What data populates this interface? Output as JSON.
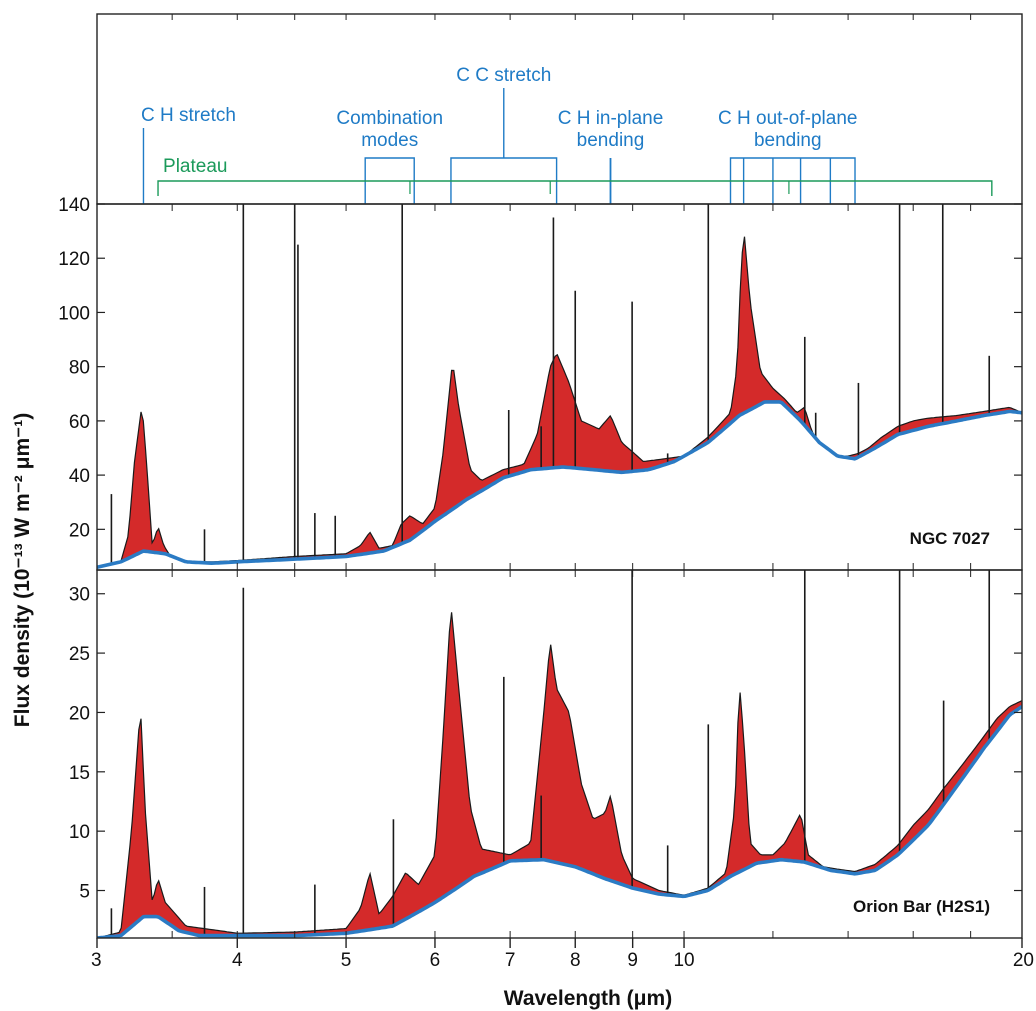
{
  "chart_data": {
    "type": "line",
    "xlabel": "Wavelength (μm)",
    "ylabel": "Flux density (10⁻¹³ W m⁻² μm⁻¹)",
    "x_scale": "log",
    "xlim": [
      3,
      20
    ],
    "x_ticks": [
      3,
      4,
      5,
      6,
      7,
      8,
      9,
      10,
      20
    ],
    "colors": {
      "spectrum": "#1a1a1a",
      "feature_fill": "#d42a2a",
      "continuum": "#2b7bc4",
      "band": "#1f7bc6",
      "plateau": "#1b9a5a"
    },
    "band_annotations": [
      {
        "label": "C H stretch",
        "lines": [
          "C H stretch"
        ],
        "positions": [
          3.3
        ]
      },
      {
        "label": "Combination modes",
        "lines": [
          "Combination",
          "modes"
        ],
        "range": [
          5.2,
          5.75
        ]
      },
      {
        "label": "C C stretch",
        "lines": [
          "C C stretch"
        ],
        "range": [
          6.2,
          7.7
        ]
      },
      {
        "label": "C H in-plane bending",
        "lines": [
          "C H in-plane",
          "bending"
        ],
        "positions": [
          8.6
        ]
      },
      {
        "label": "C H out-of-plane bending",
        "lines": [
          "C H out-of-plane",
          "bending"
        ],
        "range": [
          11.0,
          14.2
        ],
        "positions": [
          11.3,
          12.0,
          12.7,
          13.5
        ]
      }
    ],
    "plateau": {
      "label": "Plateau",
      "range": [
        3.4,
        18.8
      ],
      "ticks": [
        5.7,
        7.6,
        12.4
      ]
    },
    "panels": [
      {
        "label": "NGC 7027",
        "ylim": [
          5,
          140
        ],
        "y_ticks": [
          20,
          40,
          60,
          80,
          100,
          120,
          140
        ],
        "continuum": [
          [
            3.0,
            6
          ],
          [
            3.15,
            8
          ],
          [
            3.3,
            12
          ],
          [
            3.45,
            11
          ],
          [
            3.6,
            8
          ],
          [
            3.8,
            7.5
          ],
          [
            4.0,
            8
          ],
          [
            4.5,
            9
          ],
          [
            5.0,
            10
          ],
          [
            5.4,
            12
          ],
          [
            5.7,
            16
          ],
          [
            6.0,
            23
          ],
          [
            6.4,
            31
          ],
          [
            6.9,
            39
          ],
          [
            7.3,
            42
          ],
          [
            7.8,
            43
          ],
          [
            8.3,
            42
          ],
          [
            8.8,
            41
          ],
          [
            9.3,
            42
          ],
          [
            9.8,
            45
          ],
          [
            10.5,
            52
          ],
          [
            11.2,
            62
          ],
          [
            11.8,
            67
          ],
          [
            12.2,
            67
          ],
          [
            12.7,
            60
          ],
          [
            13.2,
            52
          ],
          [
            13.7,
            47
          ],
          [
            14.2,
            46
          ],
          [
            14.8,
            50
          ],
          [
            15.5,
            55
          ],
          [
            16.5,
            58
          ],
          [
            17.5,
            60
          ],
          [
            18.5,
            62
          ],
          [
            19.5,
            63.5
          ],
          [
            20.0,
            63
          ]
        ],
        "spectrum": [
          [
            3.0,
            6
          ],
          [
            3.15,
            8
          ],
          [
            3.2,
            18
          ],
          [
            3.24,
            45
          ],
          [
            3.29,
            66
          ],
          [
            3.32,
            45
          ],
          [
            3.36,
            14
          ],
          [
            3.4,
            21
          ],
          [
            3.44,
            14
          ],
          [
            3.5,
            9
          ],
          [
            3.6,
            8
          ],
          [
            3.8,
            8
          ],
          [
            4.0,
            8.5
          ],
          [
            4.5,
            10
          ],
          [
            5.0,
            11
          ],
          [
            5.15,
            14
          ],
          [
            5.25,
            19
          ],
          [
            5.35,
            13
          ],
          [
            5.5,
            14
          ],
          [
            5.6,
            22
          ],
          [
            5.7,
            25
          ],
          [
            5.85,
            22
          ],
          [
            6.0,
            28
          ],
          [
            6.1,
            48
          ],
          [
            6.22,
            82
          ],
          [
            6.3,
            65
          ],
          [
            6.45,
            42
          ],
          [
            6.6,
            38
          ],
          [
            6.9,
            42
          ],
          [
            7.2,
            44
          ],
          [
            7.4,
            55
          ],
          [
            7.6,
            80
          ],
          [
            7.7,
            85
          ],
          [
            7.9,
            74
          ],
          [
            8.1,
            60
          ],
          [
            8.4,
            57
          ],
          [
            8.6,
            62
          ],
          [
            8.8,
            52
          ],
          [
            9.2,
            45
          ],
          [
            9.6,
            46
          ],
          [
            10.0,
            47
          ],
          [
            10.5,
            54
          ],
          [
            11.0,
            63
          ],
          [
            11.15,
            80
          ],
          [
            11.25,
            120
          ],
          [
            11.32,
            128
          ],
          [
            11.45,
            104
          ],
          [
            11.7,
            78
          ],
          [
            12.0,
            72
          ],
          [
            12.3,
            68
          ],
          [
            12.6,
            63
          ],
          [
            12.8,
            65
          ],
          [
            13.0,
            56
          ],
          [
            13.3,
            50
          ],
          [
            13.6,
            47
          ],
          [
            14.0,
            47
          ],
          [
            14.3,
            48
          ],
          [
            14.6,
            50
          ],
          [
            15.0,
            54
          ],
          [
            15.5,
            58
          ],
          [
            16.0,
            60
          ],
          [
            16.5,
            61
          ],
          [
            17.5,
            62
          ],
          [
            18.5,
            63.5
          ],
          [
            19.5,
            65
          ],
          [
            20.0,
            63
          ]
        ],
        "emission_lines": [
          [
            3.09,
            33
          ],
          [
            3.74,
            20
          ],
          [
            4.05,
            140
          ],
          [
            4.5,
            140
          ],
          [
            4.53,
            125
          ],
          [
            4.69,
            26
          ],
          [
            4.89,
            25
          ],
          [
            5.61,
            140
          ],
          [
            6.98,
            64
          ],
          [
            7.46,
            58
          ],
          [
            7.65,
            135
          ],
          [
            8.0,
            108
          ],
          [
            8.99,
            104
          ],
          [
            9.67,
            48
          ],
          [
            10.51,
            140
          ],
          [
            12.37,
            65
          ],
          [
            12.81,
            91
          ],
          [
            13.1,
            63
          ],
          [
            14.3,
            74
          ],
          [
            15.56,
            140
          ],
          [
            17.0,
            140
          ],
          [
            18.7,
            84
          ]
        ]
      },
      {
        "label": "Orion Bar (H2S1)",
        "ylim": [
          1,
          32
        ],
        "y_ticks": [
          5,
          10,
          15,
          20,
          25,
          30
        ],
        "continuum": [
          [
            3.0,
            1
          ],
          [
            3.15,
            1.2
          ],
          [
            3.3,
            2.8
          ],
          [
            3.4,
            2.8
          ],
          [
            3.55,
            1.6
          ],
          [
            3.7,
            1.2
          ],
          [
            4.0,
            1.2
          ],
          [
            4.5,
            1.2
          ],
          [
            5.0,
            1.4
          ],
          [
            5.5,
            2.0
          ],
          [
            6.0,
            4.0
          ],
          [
            6.5,
            6.2
          ],
          [
            7.0,
            7.5
          ],
          [
            7.5,
            7.6
          ],
          [
            8.0,
            7.0
          ],
          [
            8.5,
            6.0
          ],
          [
            9.0,
            5.2
          ],
          [
            9.5,
            4.7
          ],
          [
            10.0,
            4.5
          ],
          [
            10.5,
            5.0
          ],
          [
            11.0,
            6.2
          ],
          [
            11.6,
            7.3
          ],
          [
            12.2,
            7.6
          ],
          [
            12.8,
            7.4
          ],
          [
            13.5,
            6.7
          ],
          [
            14.2,
            6.4
          ],
          [
            14.8,
            6.7
          ],
          [
            15.5,
            8.0
          ],
          [
            16.5,
            10.5
          ],
          [
            17.5,
            13.8
          ],
          [
            18.5,
            17.0
          ],
          [
            19.5,
            19.8
          ],
          [
            20.0,
            20.5
          ]
        ],
        "spectrum": [
          [
            3.0,
            1
          ],
          [
            3.15,
            1.5
          ],
          [
            3.22,
            10
          ],
          [
            3.28,
            20.5
          ],
          [
            3.31,
            12
          ],
          [
            3.36,
            4
          ],
          [
            3.4,
            6
          ],
          [
            3.45,
            4
          ],
          [
            3.6,
            2
          ],
          [
            4.0,
            1.4
          ],
          [
            4.5,
            1.5
          ],
          [
            5.0,
            1.8
          ],
          [
            5.15,
            3.5
          ],
          [
            5.25,
            6.5
          ],
          [
            5.35,
            3.0
          ],
          [
            5.5,
            4.5
          ],
          [
            5.65,
            6.5
          ],
          [
            5.8,
            5.5
          ],
          [
            6.0,
            8
          ],
          [
            6.1,
            18
          ],
          [
            6.2,
            29
          ],
          [
            6.3,
            22
          ],
          [
            6.45,
            12
          ],
          [
            6.6,
            8.5
          ],
          [
            7.0,
            8
          ],
          [
            7.3,
            9
          ],
          [
            7.5,
            20
          ],
          [
            7.6,
            26
          ],
          [
            7.7,
            22
          ],
          [
            7.9,
            20
          ],
          [
            8.1,
            14
          ],
          [
            8.3,
            11
          ],
          [
            8.5,
            11.5
          ],
          [
            8.6,
            13
          ],
          [
            8.8,
            8
          ],
          [
            9.0,
            6
          ],
          [
            9.5,
            5
          ],
          [
            10.0,
            4.6
          ],
          [
            10.5,
            5.2
          ],
          [
            10.9,
            6.5
          ],
          [
            11.1,
            12
          ],
          [
            11.2,
            22.5
          ],
          [
            11.3,
            18
          ],
          [
            11.45,
            9
          ],
          [
            11.7,
            8
          ],
          [
            12.0,
            8
          ],
          [
            12.3,
            9
          ],
          [
            12.7,
            11.5
          ],
          [
            12.9,
            8
          ],
          [
            13.3,
            7
          ],
          [
            13.7,
            6.8
          ],
          [
            14.2,
            6.6
          ],
          [
            14.8,
            7.2
          ],
          [
            15.5,
            8.8
          ],
          [
            16.0,
            10.5
          ],
          [
            16.5,
            11.8
          ],
          [
            17.0,
            13.5
          ],
          [
            17.5,
            15
          ],
          [
            18.0,
            16.5
          ],
          [
            18.5,
            18
          ],
          [
            19.0,
            19.5
          ],
          [
            19.5,
            20.5
          ],
          [
            20.0,
            21
          ]
        ],
        "emission_lines": [
          [
            3.09,
            3.5
          ],
          [
            3.74,
            5.3
          ],
          [
            4.05,
            30.5
          ],
          [
            4.69,
            5.5
          ],
          [
            5.51,
            11
          ],
          [
            6.91,
            23
          ],
          [
            7.46,
            13
          ],
          [
            8.99,
            32
          ],
          [
            9.67,
            8.8
          ],
          [
            10.51,
            19
          ],
          [
            12.81,
            32
          ],
          [
            15.56,
            32
          ],
          [
            17.03,
            21
          ],
          [
            18.7,
            32
          ]
        ]
      }
    ]
  }
}
